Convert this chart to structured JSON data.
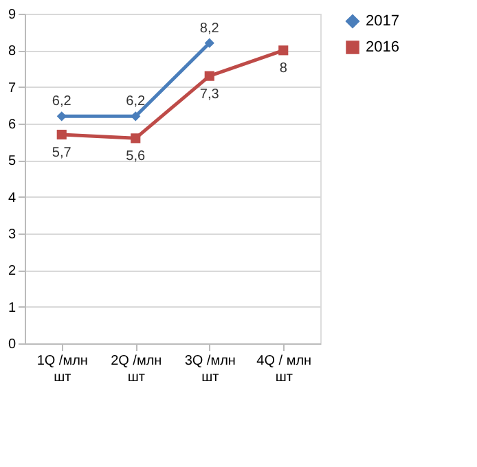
{
  "chart_data": {
    "type": "line",
    "categories": [
      "1Q /млн шт",
      "2Q /млн шт",
      "3Q /млн шт",
      "4Q / млн шт"
    ],
    "series": [
      {
        "name": "2017",
        "color": "#4a7ebb",
        "marker": "diamond",
        "values": [
          6.2,
          6.2,
          8.2,
          null
        ],
        "value_labels": [
          "6,2",
          "6,2",
          "8,2",
          null
        ]
      },
      {
        "name": "2016",
        "color": "#be4b48",
        "marker": "square",
        "values": [
          5.7,
          5.6,
          7.3,
          8
        ],
        "value_labels": [
          "5,7",
          "5,6",
          "7,3",
          "8"
        ]
      }
    ],
    "ylim": [
      0,
      9
    ],
    "yticks": [
      0,
      1,
      2,
      3,
      4,
      5,
      6,
      7,
      8,
      9
    ],
    "grid": "y",
    "legend": "right",
    "line_style": "solid"
  }
}
